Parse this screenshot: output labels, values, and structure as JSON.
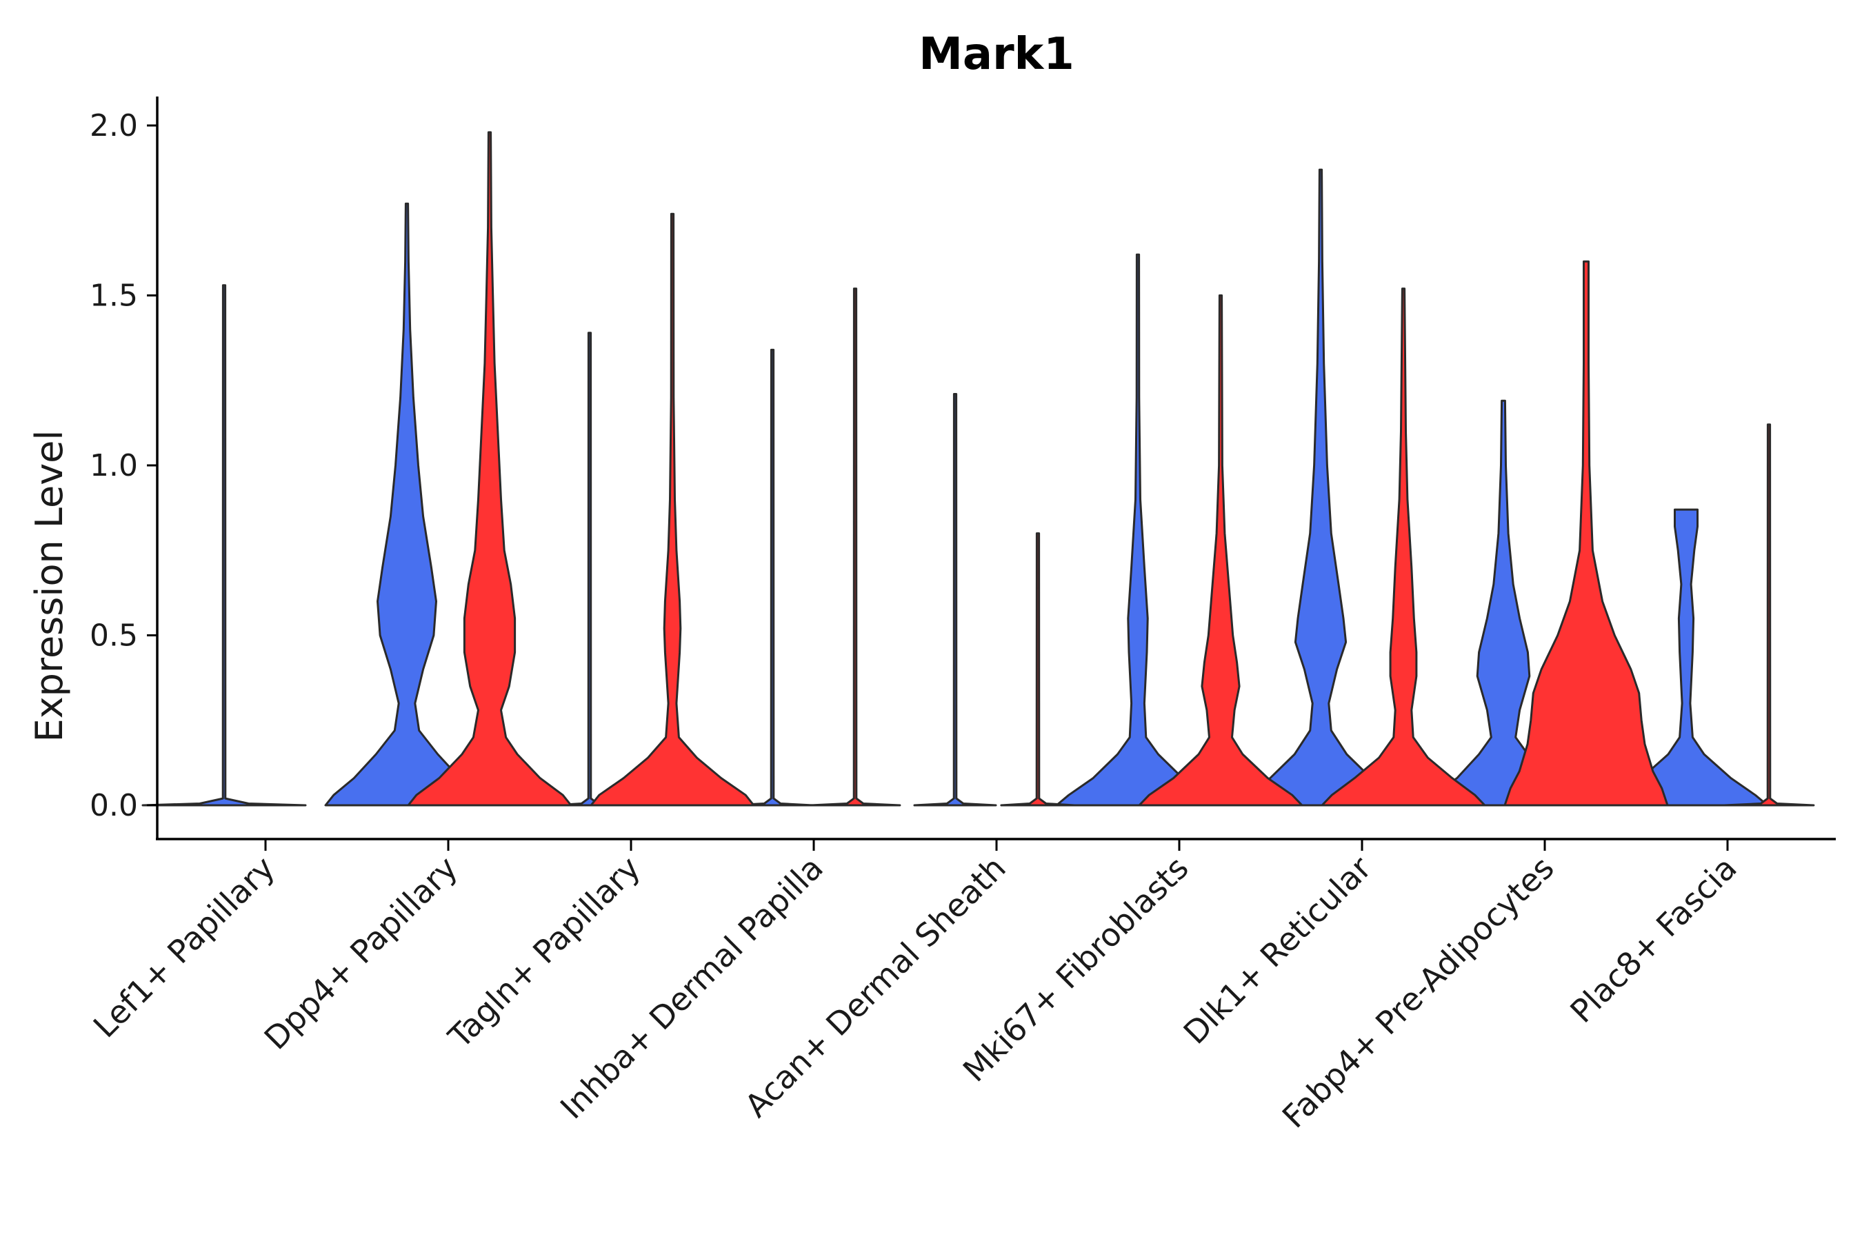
{
  "chart_data": {
    "type": "violin",
    "title": "Mark1",
    "xlabel": "",
    "ylabel": "Expression Level",
    "ylim": [
      -0.1,
      2.08
    ],
    "yticks": [
      0.0,
      0.5,
      1.0,
      1.5,
      2.0
    ],
    "ytick_labels": [
      "0.0",
      "0.5",
      "1.0",
      "1.5",
      "2.0"
    ],
    "colors": {
      "group1": "#4870EF",
      "group2": "#FF3333",
      "outline": "#2a2a2a"
    },
    "categories": [
      "Lef1+ Papillary",
      "Dpp4+ Papillary",
      "Tagln+ Papillary",
      "Inhba+ Dermal Papilla",
      "Acan+ Dermal Sheath",
      "Mki67+ Fibroblasts",
      "Dlk1+ Reticular",
      "Fabp4+ Pre-Adipocytes",
      "Plac8+ Fascia"
    ],
    "series": [
      {
        "name": "group1",
        "color": "#4870EF",
        "violins": [
          {
            "max": 1.53,
            "profile": [
              [
                0,
                1.0
              ],
              [
                0.005,
                0.3
              ],
              [
                0.02,
                0.015
              ],
              [
                1.53,
                0.01
              ]
            ]
          },
          {
            "max": 1.77,
            "profile": [
              [
                0,
                1.0
              ],
              [
                0.03,
                0.9
              ],
              [
                0.08,
                0.65
              ],
              [
                0.15,
                0.38
              ],
              [
                0.22,
                0.15
              ],
              [
                0.3,
                0.1
              ],
              [
                0.4,
                0.2
              ],
              [
                0.5,
                0.33
              ],
              [
                0.6,
                0.36
              ],
              [
                0.7,
                0.3
              ],
              [
                0.85,
                0.2
              ],
              [
                1.0,
                0.14
              ],
              [
                1.2,
                0.08
              ],
              [
                1.4,
                0.04
              ],
              [
                1.6,
                0.02
              ],
              [
                1.77,
                0.01
              ]
            ]
          },
          {
            "max": 1.39,
            "profile": [
              [
                0,
                0.45
              ],
              [
                0.005,
                0.1
              ],
              [
                0.02,
                0.015
              ],
              [
                1.39,
                0.01
              ]
            ]
          },
          {
            "max": 1.34,
            "profile": [
              [
                0,
                0.5
              ],
              [
                0.005,
                0.1
              ],
              [
                0.02,
                0.015
              ],
              [
                1.34,
                0.01
              ]
            ]
          },
          {
            "max": 1.21,
            "profile": [
              [
                0,
                0.5
              ],
              [
                0.005,
                0.1
              ],
              [
                0.02,
                0.015
              ],
              [
                1.21,
                0.01
              ]
            ]
          },
          {
            "max": 1.62,
            "profile": [
              [
                0,
                1.0
              ],
              [
                0.03,
                0.85
              ],
              [
                0.08,
                0.55
              ],
              [
                0.15,
                0.25
              ],
              [
                0.2,
                0.1
              ],
              [
                0.3,
                0.08
              ],
              [
                0.45,
                0.11
              ],
              [
                0.55,
                0.12
              ],
              [
                0.7,
                0.08
              ],
              [
                0.9,
                0.03
              ],
              [
                1.2,
                0.015
              ],
              [
                1.62,
                0.01
              ]
            ]
          },
          {
            "max": 1.87,
            "profile": [
              [
                0,
                1.0
              ],
              [
                0.03,
                0.88
              ],
              [
                0.08,
                0.62
              ],
              [
                0.15,
                0.32
              ],
              [
                0.22,
                0.13
              ],
              [
                0.3,
                0.1
              ],
              [
                0.4,
                0.2
              ],
              [
                0.48,
                0.31
              ],
              [
                0.55,
                0.28
              ],
              [
                0.65,
                0.22
              ],
              [
                0.8,
                0.13
              ],
              [
                1.0,
                0.08
              ],
              [
                1.3,
                0.04
              ],
              [
                1.6,
                0.02
              ],
              [
                1.87,
                0.01
              ]
            ]
          },
          {
            "max": 1.19,
            "profile": [
              [
                0,
                1.0
              ],
              [
                0.03,
                0.85
              ],
              [
                0.08,
                0.57
              ],
              [
                0.15,
                0.3
              ],
              [
                0.2,
                0.15
              ],
              [
                0.28,
                0.2
              ],
              [
                0.38,
                0.32
              ],
              [
                0.45,
                0.3
              ],
              [
                0.55,
                0.2
              ],
              [
                0.65,
                0.12
              ],
              [
                0.8,
                0.06
              ],
              [
                1.0,
                0.03
              ],
              [
                1.19,
                0.02
              ]
            ]
          },
          {
            "max": 0.87,
            "profile": [
              [
                0,
                1.0
              ],
              [
                0.03,
                0.85
              ],
              [
                0.08,
                0.55
              ],
              [
                0.15,
                0.22
              ],
              [
                0.2,
                0.08
              ],
              [
                0.3,
                0.05
              ],
              [
                0.45,
                0.08
              ],
              [
                0.55,
                0.09
              ],
              [
                0.65,
                0.06
              ],
              [
                0.75,
                0.1
              ],
              [
                0.82,
                0.14
              ],
              [
                0.87,
                0.14
              ]
            ]
          }
        ]
      },
      {
        "name": "group2",
        "color": "#FF3333",
        "violins": [
          null,
          {
            "max": 1.98,
            "profile": [
              [
                0,
                1.0
              ],
              [
                0.03,
                0.9
              ],
              [
                0.08,
                0.62
              ],
              [
                0.15,
                0.34
              ],
              [
                0.2,
                0.2
              ],
              [
                0.28,
                0.14
              ],
              [
                0.35,
                0.24
              ],
              [
                0.45,
                0.31
              ],
              [
                0.55,
                0.31
              ],
              [
                0.65,
                0.26
              ],
              [
                0.75,
                0.18
              ],
              [
                0.9,
                0.14
              ],
              [
                1.1,
                0.1
              ],
              [
                1.3,
                0.06
              ],
              [
                1.5,
                0.04
              ],
              [
                1.7,
                0.02
              ],
              [
                1.98,
                0.01
              ]
            ]
          },
          {
            "max": 1.74,
            "profile": [
              [
                0,
                1.0
              ],
              [
                0.03,
                0.9
              ],
              [
                0.08,
                0.6
              ],
              [
                0.14,
                0.3
              ],
              [
                0.2,
                0.08
              ],
              [
                0.3,
                0.05
              ],
              [
                0.45,
                0.09
              ],
              [
                0.52,
                0.1
              ],
              [
                0.6,
                0.09
              ],
              [
                0.75,
                0.05
              ],
              [
                0.9,
                0.03
              ],
              [
                1.2,
                0.015
              ],
              [
                1.74,
                0.01
              ]
            ]
          },
          {
            "max": 1.52,
            "profile": [
              [
                0,
                0.55
              ],
              [
                0.005,
                0.1
              ],
              [
                0.02,
                0.015
              ],
              [
                1.52,
                0.01
              ]
            ]
          },
          {
            "max": 0.8,
            "profile": [
              [
                0,
                0.45
              ],
              [
                0.005,
                0.1
              ],
              [
                0.02,
                0.015
              ],
              [
                0.8,
                0.01
              ]
            ]
          },
          {
            "max": 1.5,
            "profile": [
              [
                0,
                1.0
              ],
              [
                0.03,
                0.88
              ],
              [
                0.08,
                0.58
              ],
              [
                0.15,
                0.27
              ],
              [
                0.2,
                0.14
              ],
              [
                0.28,
                0.17
              ],
              [
                0.35,
                0.23
              ],
              [
                0.42,
                0.2
              ],
              [
                0.5,
                0.15
              ],
              [
                0.65,
                0.1
              ],
              [
                0.8,
                0.05
              ],
              [
                1.0,
                0.02
              ],
              [
                1.5,
                0.01
              ]
            ]
          },
          {
            "max": 1.52,
            "profile": [
              [
                0,
                1.0
              ],
              [
                0.03,
                0.88
              ],
              [
                0.08,
                0.6
              ],
              [
                0.14,
                0.3
              ],
              [
                0.2,
                0.12
              ],
              [
                0.28,
                0.1
              ],
              [
                0.38,
                0.16
              ],
              [
                0.45,
                0.16
              ],
              [
                0.55,
                0.13
              ],
              [
                0.7,
                0.1
              ],
              [
                0.9,
                0.05
              ],
              [
                1.1,
                0.03
              ],
              [
                1.52,
                0.01
              ]
            ]
          },
          {
            "max": 1.6,
            "profile": [
              [
                0,
                1.0
              ],
              [
                0.05,
                0.93
              ],
              [
                0.1,
                0.82
              ],
              [
                0.18,
                0.72
              ],
              [
                0.25,
                0.68
              ],
              [
                0.33,
                0.65
              ],
              [
                0.4,
                0.55
              ],
              [
                0.5,
                0.35
              ],
              [
                0.6,
                0.2
              ],
              [
                0.75,
                0.08
              ],
              [
                1.0,
                0.04
              ],
              [
                1.3,
                0.03
              ],
              [
                1.55,
                0.03
              ],
              [
                1.6,
                0.03
              ]
            ]
          },
          {
            "max": 1.12,
            "profile": [
              [
                0,
                0.55
              ],
              [
                0.005,
                0.1
              ],
              [
                0.02,
                0.015
              ],
              [
                1.12,
                0.01
              ]
            ]
          }
        ]
      }
    ]
  }
}
